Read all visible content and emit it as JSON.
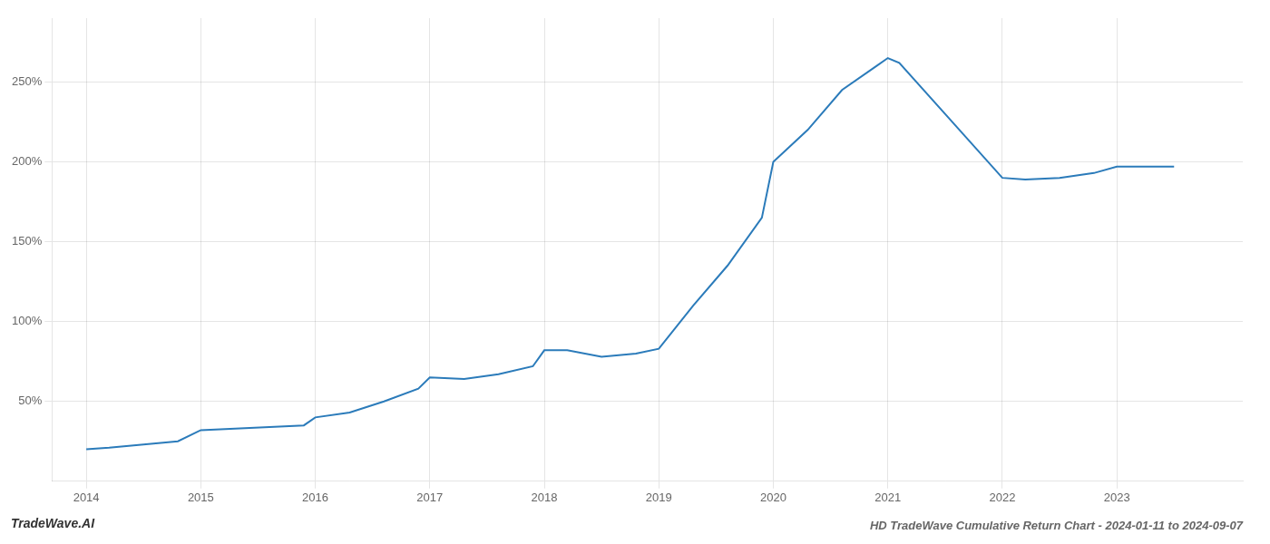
{
  "chart_data": {
    "type": "line",
    "title": "HD TradeWave Cumulative Return Chart - 2024-01-11 to 2024-09-07",
    "annotations": [
      "TradeWave.AI"
    ],
    "x": [
      2014.0,
      2014.2,
      2014.5,
      2014.8,
      2015.0,
      2015.3,
      2015.6,
      2015.9,
      2016.0,
      2016.3,
      2016.6,
      2016.9,
      2017.0,
      2017.3,
      2017.6,
      2017.9,
      2018.0,
      2018.2,
      2018.5,
      2018.8,
      2019.0,
      2019.3,
      2019.6,
      2019.9,
      2020.0,
      2020.3,
      2020.6,
      2020.9,
      2021.0,
      2021.1,
      2021.5,
      2022.0,
      2022.2,
      2022.5,
      2022.8,
      2023.0,
      2023.5
    ],
    "values": [
      20,
      21,
      23,
      25,
      32,
      33,
      34,
      35,
      40,
      43,
      50,
      58,
      65,
      64,
      67,
      72,
      82,
      82,
      78,
      80,
      83,
      110,
      135,
      165,
      200,
      220,
      245,
      260,
      265,
      262,
      230,
      190,
      189,
      190,
      193,
      197,
      197
    ],
    "color": "#2b7bba",
    "xlim": [
      2013.7,
      2024.1
    ],
    "xticks": [
      2014,
      2015,
      2016,
      2017,
      2018,
      2019,
      2020,
      2021,
      2022,
      2023
    ],
    "ylim": [
      0,
      290
    ],
    "yticks": [
      {
        "value": 50,
        "label": "50%"
      },
      {
        "value": 100,
        "label": "100%"
      },
      {
        "value": 150,
        "label": "150%"
      },
      {
        "value": 200,
        "label": "200%"
      },
      {
        "value": 250,
        "label": "250%"
      }
    ],
    "grid": true
  }
}
